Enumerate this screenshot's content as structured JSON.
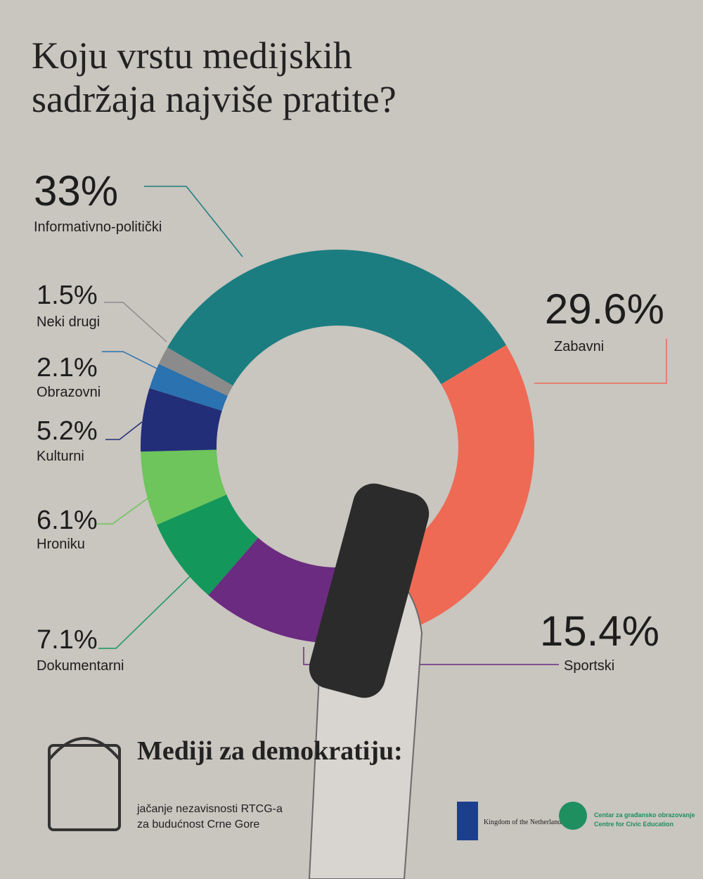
{
  "chart_data": {
    "type": "donut",
    "title": "Koju vrstu medijskih sadržaja najviše pratite?",
    "categories": [
      "Informativno-politički",
      "Zabavni",
      "Sportski",
      "Dokumentarni",
      "Hroniku",
      "Kulturni",
      "Obrazovni",
      "Neki drugi"
    ],
    "values": [
      33,
      29.6,
      15.4,
      7.1,
      6.1,
      5.2,
      2.1,
      1.5
    ],
    "value_labels": [
      "33%",
      "29.6%",
      "15.4%",
      "7.1%",
      "6.1%",
      "5.2%",
      "2.1%",
      "1.5%"
    ],
    "colors": [
      "#1b7d80",
      "#ee6a55",
      "#6b2b80",
      "#14975a",
      "#6dc55c",
      "#232e78",
      "#2a72b0",
      "#8b8b8b"
    ]
  },
  "footer": {
    "project_title": "Mediji za demokratiju:",
    "project_subtitle_1": "jačanje nezavisnosti RTCG-a",
    "project_subtitle_2": "za budućnost Crne Gore",
    "partner_1": "Kingdom of the Netherlands",
    "partner_2_local": "Centar za građansko obrazovanje",
    "partner_2_en": "Centre for Civic Education"
  }
}
